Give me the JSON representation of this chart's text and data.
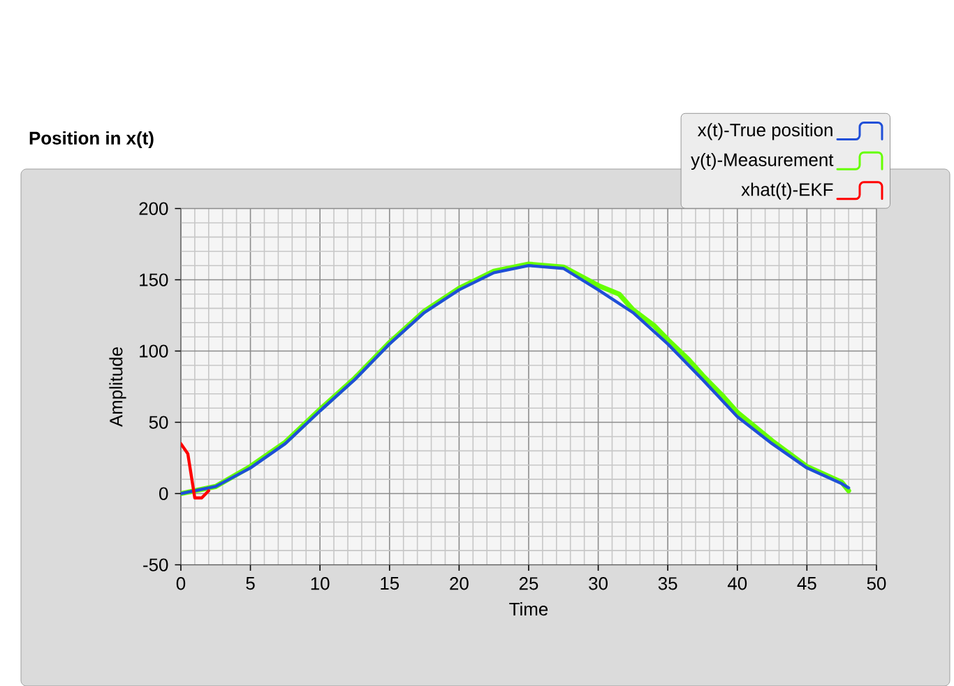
{
  "chart_data": {
    "type": "line",
    "title": "Position in x(t)",
    "xlabel": "Time",
    "ylabel": "Amplitude",
    "xlim": [
      0,
      50
    ],
    "ylim": [
      -50,
      200
    ],
    "xticks": [
      0,
      5,
      10,
      15,
      20,
      25,
      30,
      35,
      40,
      45,
      50
    ],
    "yticks": [
      -50,
      0,
      50,
      100,
      150,
      200
    ],
    "grid": true,
    "legend": "top right",
    "marker": "none",
    "line_style": "solid",
    "series": [
      {
        "name": "x(t)-True position",
        "color": "#1f4fd8",
        "x": [
          0,
          2.5,
          5,
          7.5,
          10,
          12.5,
          15,
          17.5,
          20,
          22.5,
          25,
          27.5,
          30,
          32.5,
          35,
          37.5,
          40,
          42.5,
          45,
          47.5,
          48
        ],
        "values": [
          0,
          5,
          18,
          35,
          58,
          80,
          105,
          127,
          143,
          155,
          160,
          158,
          143,
          127,
          105,
          80,
          54,
          35,
          18,
          7,
          4
        ]
      },
      {
        "name": "y(t)-Measurement",
        "color": "#66ff00",
        "x": [
          0,
          2.5,
          5,
          7.5,
          10,
          12.5,
          15,
          17.5,
          20,
          22.5,
          25,
          27.5,
          30,
          31.5,
          32.5,
          34,
          35,
          36.5,
          37.5,
          39,
          40,
          42.5,
          45,
          47.5,
          48
        ],
        "values": [
          0,
          5,
          19,
          36,
          59,
          81,
          106,
          128,
          144,
          156,
          161,
          159,
          146,
          140,
          129,
          118,
          108,
          94,
          83,
          68,
          57,
          37,
          19,
          8,
          2
        ]
      },
      {
        "name": "xhat(t)-EKF",
        "color": "#ff0000",
        "x": [
          0,
          0.5,
          1,
          1.5,
          2
        ],
        "values": [
          35,
          28,
          -3,
          -3,
          2
        ]
      }
    ]
  }
}
